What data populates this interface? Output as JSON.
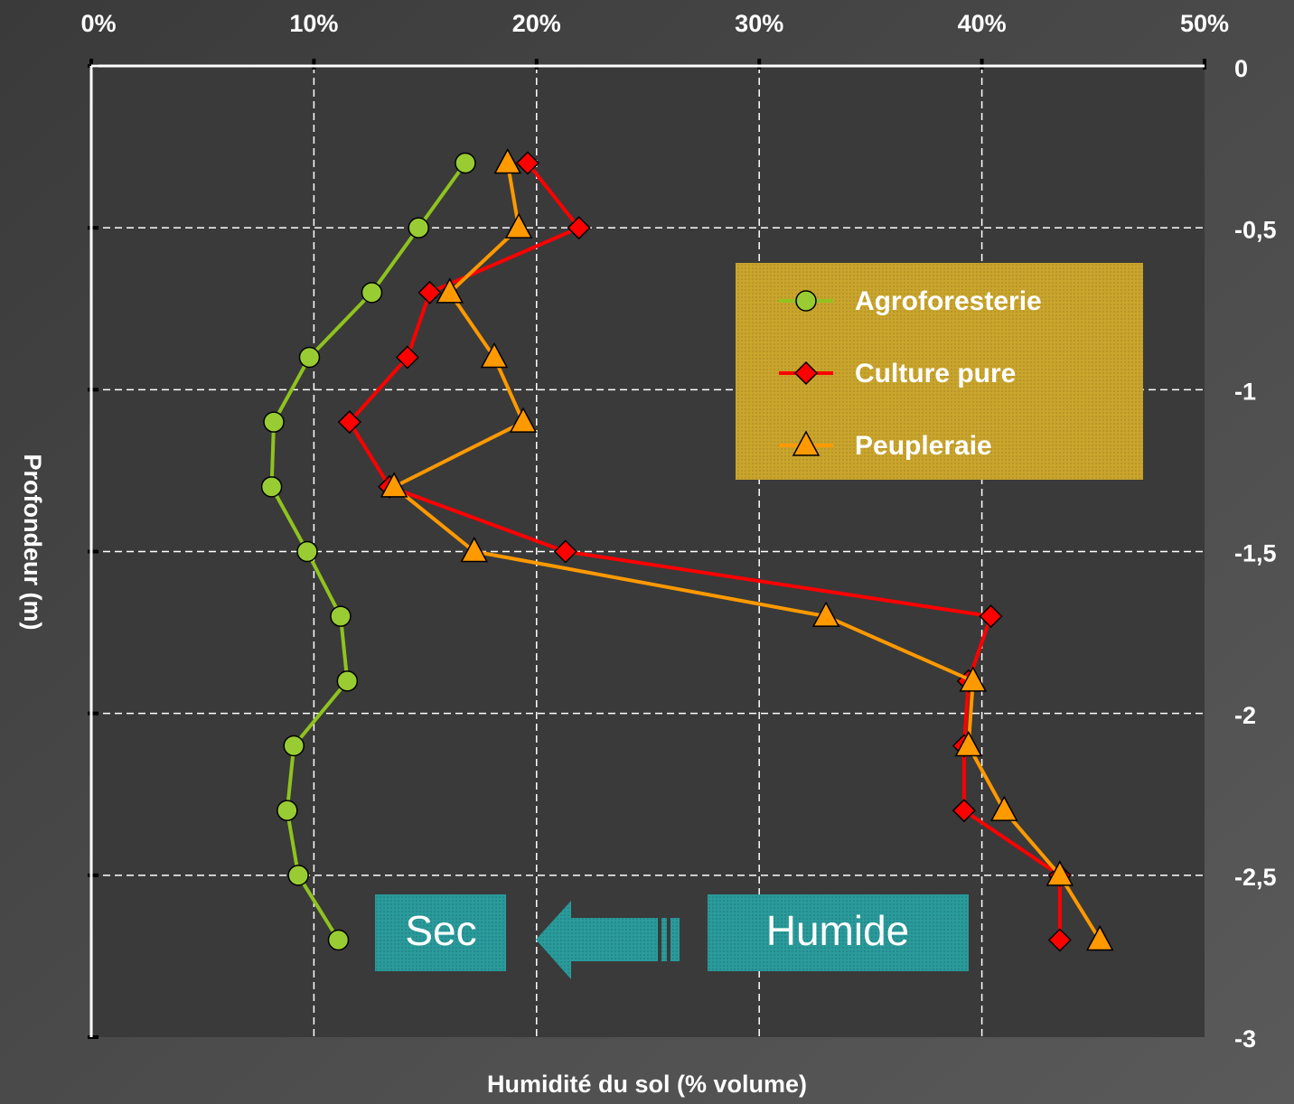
{
  "chart_data": {
    "type": "line",
    "x_label": "Humidité du sol  (% volume)",
    "y_label": "Profondeur (m)",
    "xlim": [
      0,
      50
    ],
    "xticks": [
      {
        "value": 0,
        "label": "0%"
      },
      {
        "value": 10,
        "label": "10%"
      },
      {
        "value": 20,
        "label": "20%"
      },
      {
        "value": 30,
        "label": "30%"
      },
      {
        "value": 40,
        "label": "40%"
      },
      {
        "value": 50,
        "label": "50%"
      }
    ],
    "ylim": [
      -3,
      0
    ],
    "yticks": [
      0,
      {
        "value": -0.5,
        "label": "-0,5"
      },
      -1,
      {
        "value": -1.5,
        "label": "-1,5"
      },
      -2,
      {
        "value": -2.5,
        "label": "-2,5"
      },
      -3
    ],
    "grid": true,
    "y": [
      -0.3,
      -0.5,
      -0.7,
      -0.9,
      -1.1,
      -1.3,
      -1.5,
      -1.7,
      -1.9,
      -2.1,
      -2.3,
      -2.5,
      -2.7
    ],
    "series": [
      {
        "name": "Agroforesterie",
        "color": "#8fc31f",
        "marker": "circle",
        "values": [
          16.8,
          14.7,
          12.6,
          9.8,
          8.2,
          8.1,
          9.7,
          11.2,
          11.5,
          9.1,
          8.8,
          9.3,
          11.1
        ]
      },
      {
        "name": "Culture pure",
        "color": "#ff0000",
        "marker": "diamond",
        "values": [
          19.6,
          21.9,
          15.2,
          14.2,
          11.6,
          13.4,
          21.3,
          40.4,
          39.4,
          39.2,
          39.2,
          43.5,
          43.5
        ]
      },
      {
        "name": "Peupleraie",
        "color": "#ff9900",
        "marker": "triangle",
        "values": [
          18.7,
          19.2,
          16.1,
          18.1,
          19.4,
          13.6,
          17.2,
          33.0,
          39.6,
          39.4,
          41.0,
          43.5,
          45.3
        ]
      }
    ],
    "annotations": [
      "Sec",
      "Humide"
    ]
  }
}
